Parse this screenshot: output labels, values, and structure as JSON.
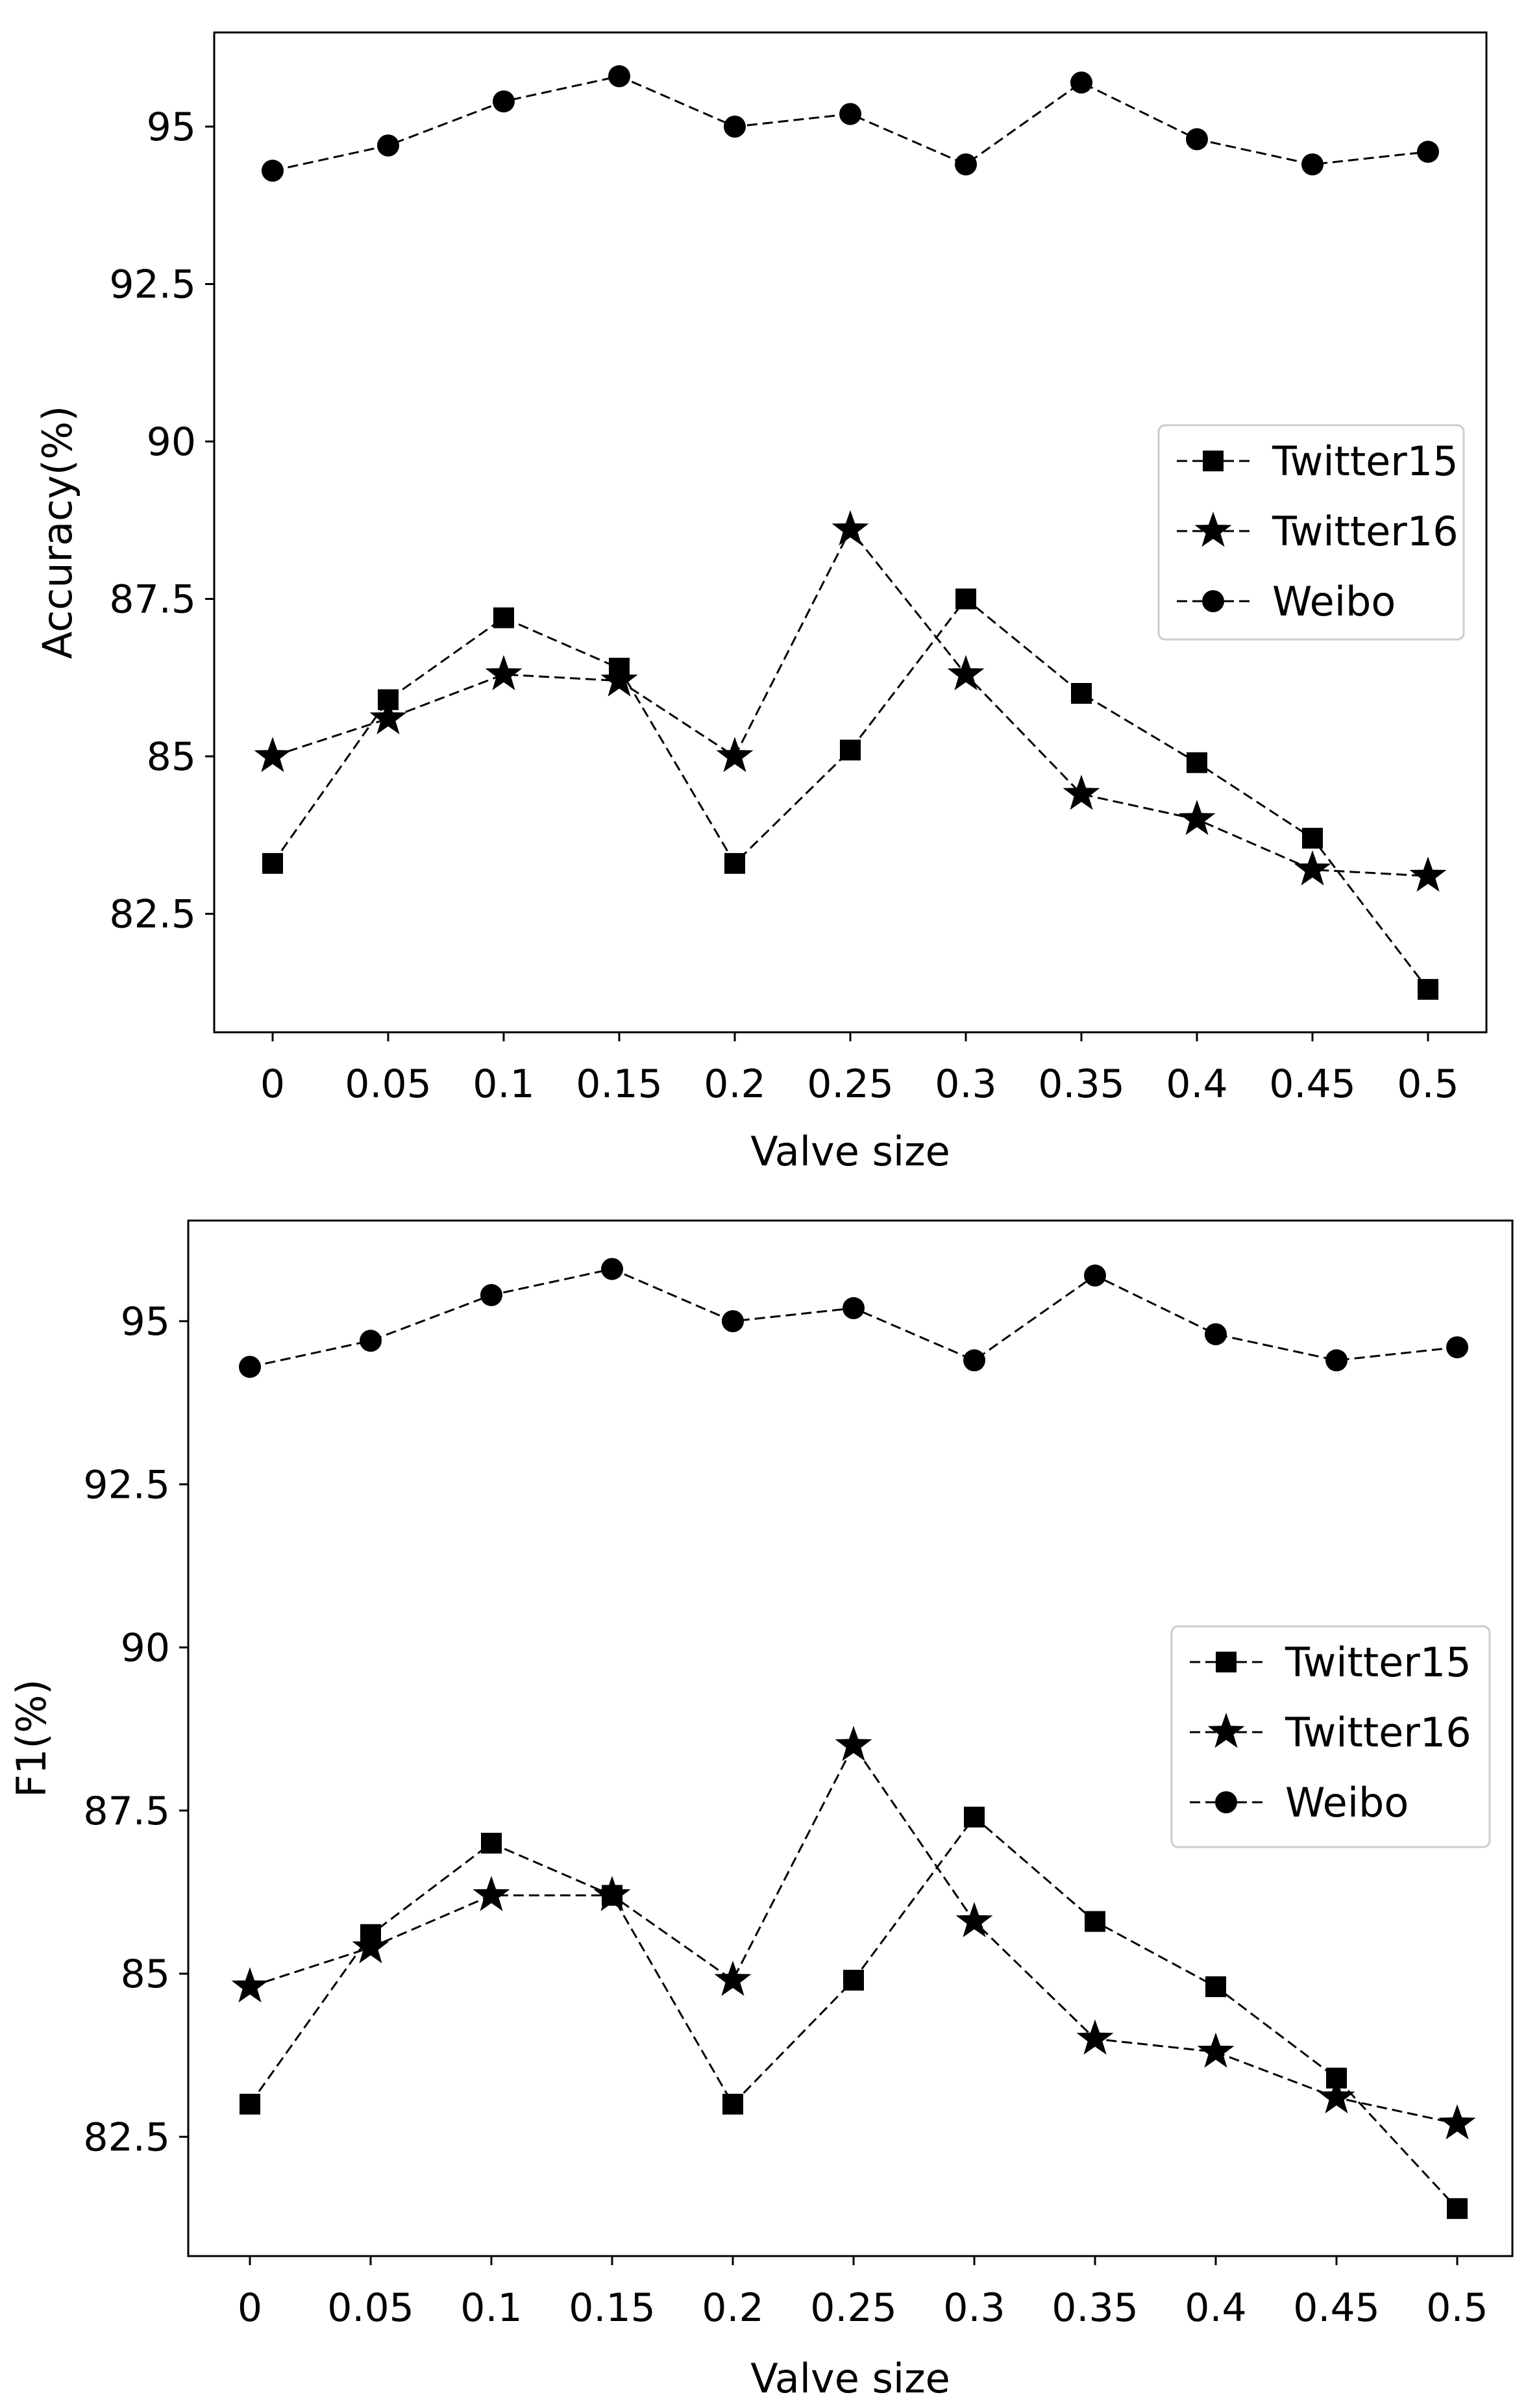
{
  "chart_data": [
    {
      "type": "line",
      "title": "",
      "xlabel": "Valve size",
      "ylabel": "Accuracy(%)",
      "categories": [
        "0",
        "0.05",
        "0.1",
        "0.15",
        "0.2",
        "0.25",
        "0.3",
        "0.35",
        "0.4",
        "0.45",
        "0.5"
      ],
      "yticks": [
        82.5,
        85,
        87.5,
        90,
        92.5,
        95
      ],
      "ytick_labels": [
        "82.5",
        "85",
        "87.5",
        "90",
        "92.5",
        "95"
      ],
      "ylim": [
        80.9,
        96.6
      ],
      "grid": false,
      "legend_position": "center-right",
      "series": [
        {
          "name": "Twitter15",
          "marker": "square",
          "values": [
            83.3,
            85.9,
            87.2,
            86.4,
            83.3,
            85.1,
            87.5,
            86.0,
            84.9,
            83.7,
            81.3
          ]
        },
        {
          "name": "Twitter16",
          "marker": "star",
          "values": [
            85.0,
            85.6,
            86.3,
            86.2,
            85.0,
            88.6,
            86.3,
            84.4,
            84.0,
            83.2,
            83.1
          ]
        },
        {
          "name": "Weibo",
          "marker": "circle",
          "values": [
            94.3,
            94.7,
            95.4,
            95.8,
            95.0,
            95.2,
            94.4,
            95.7,
            94.8,
            94.4,
            94.6
          ]
        }
      ]
    },
    {
      "type": "line",
      "title": "",
      "xlabel": "Valve size",
      "ylabel": "F1(%)",
      "categories": [
        "0",
        "0.05",
        "0.1",
        "0.15",
        "0.2",
        "0.25",
        "0.3",
        "0.35",
        "0.4",
        "0.45",
        "0.5"
      ],
      "yticks": [
        82.5,
        85,
        87.5,
        90,
        92.5,
        95
      ],
      "ytick_labels": [
        "82.5",
        "85",
        "87.5",
        "90",
        "92.5",
        "95"
      ],
      "ylim": [
        80.9,
        96.6
      ],
      "grid": false,
      "legend_position": "center-right",
      "series": [
        {
          "name": "Twitter15",
          "marker": "square",
          "values": [
            83.0,
            85.6,
            87.0,
            86.2,
            83.0,
            84.9,
            87.4,
            85.8,
            84.8,
            83.4,
            81.4
          ]
        },
        {
          "name": "Twitter16",
          "marker": "star",
          "values": [
            84.8,
            85.4,
            86.2,
            86.2,
            84.9,
            88.5,
            85.8,
            84.0,
            83.8,
            83.1,
            82.7
          ]
        },
        {
          "name": "Weibo",
          "marker": "circle",
          "values": [
            94.3,
            94.7,
            95.4,
            95.8,
            95.0,
            95.2,
            94.4,
            95.7,
            94.8,
            94.4,
            94.6
          ]
        }
      ]
    }
  ]
}
